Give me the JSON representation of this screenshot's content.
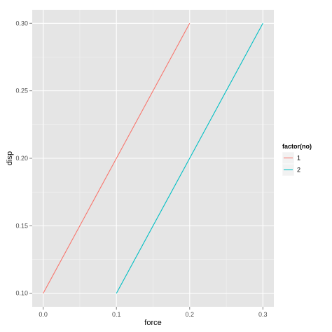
{
  "chart_data": {
    "type": "line",
    "xlabel": "force",
    "ylabel": "disp",
    "xlim": [
      -0.015,
      0.315
    ],
    "ylim": [
      0.09,
      0.31
    ],
    "x_ticks": [
      "0.0",
      "0.1",
      "0.2",
      "0.3"
    ],
    "x_tick_values": [
      0.0,
      0.1,
      0.2,
      0.3
    ],
    "y_ticks": [
      "0.10",
      "0.15",
      "0.20",
      "0.25",
      "0.30"
    ],
    "y_tick_values": [
      0.1,
      0.15,
      0.2,
      0.25,
      0.3
    ],
    "legend_title": "factor(no)",
    "legend_position": "right",
    "grid": true,
    "background": "#e5e5e5",
    "series": [
      {
        "name": "1",
        "color": "#f8766d",
        "x": [
          0.0,
          0.1,
          0.2
        ],
        "y": [
          0.1,
          0.2,
          0.3
        ]
      },
      {
        "name": "2",
        "color": "#00bfc4",
        "x": [
          0.1,
          0.2,
          0.3
        ],
        "y": [
          0.1,
          0.2,
          0.3
        ]
      }
    ]
  }
}
